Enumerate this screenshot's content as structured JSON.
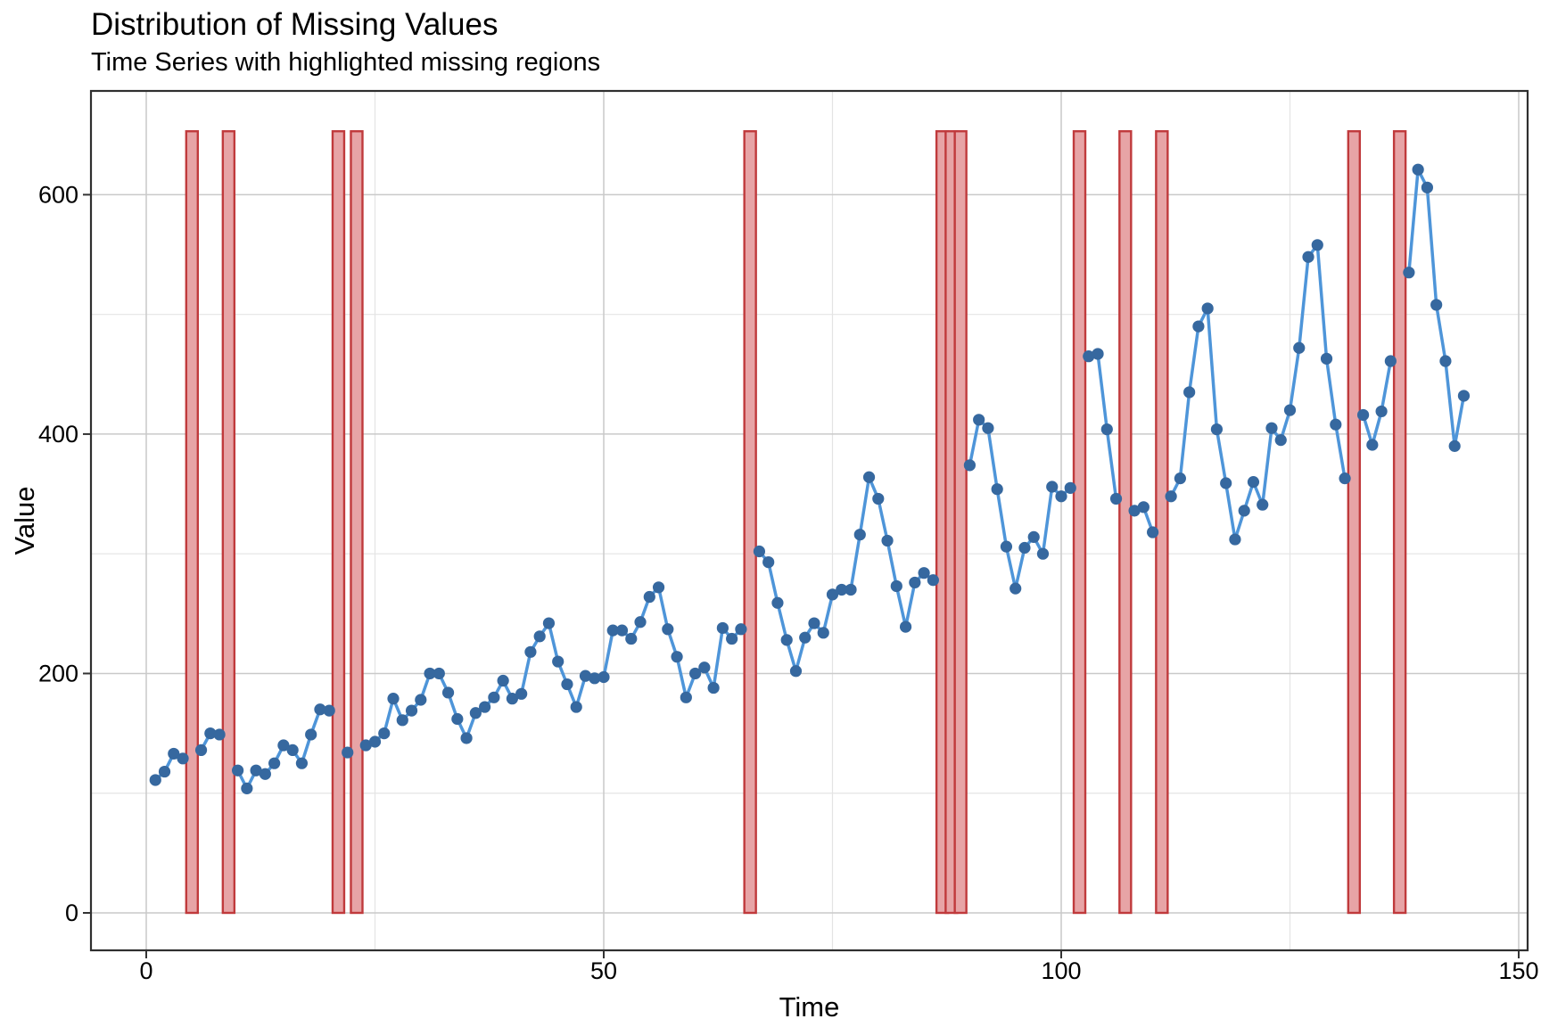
{
  "header": {
    "title": "Distribution of Missing Values",
    "subtitle": "Time Series with highlighted missing regions"
  },
  "chart_data": {
    "type": "line",
    "title": "Distribution of Missing Values",
    "subtitle": "Time Series with highlighted missing regions",
    "xlabel": "Time",
    "ylabel": "Value",
    "x_ticks": [
      0,
      50,
      100,
      150
    ],
    "x_tick_labels": [
      "0",
      "50",
      "100",
      "150"
    ],
    "x_minor_ticks": [
      25,
      75,
      125
    ],
    "y_ticks": [
      0,
      200,
      400,
      600
    ],
    "y_tick_labels": [
      "0",
      "200",
      "400",
      "600"
    ],
    "y_minor_ticks": [
      100,
      300,
      500
    ],
    "xlim": [
      -6,
      151
    ],
    "ylim": [
      -31,
      686
    ],
    "grid": true,
    "legend": false,
    "t_start": 1,
    "values": [
      111,
      118,
      133,
      129,
      null,
      136,
      150,
      149,
      null,
      119,
      104,
      119,
      116,
      125,
      140,
      136,
      125,
      149,
      170,
      169,
      null,
      134,
      null,
      140,
      143,
      150,
      179,
      161,
      169,
      178,
      200,
      200,
      184,
      162,
      146,
      167,
      172,
      180,
      194,
      179,
      183,
      218,
      231,
      242,
      210,
      191,
      172,
      198,
      196,
      197,
      236,
      236,
      229,
      243,
      264,
      272,
      237,
      214,
      180,
      200,
      205,
      188,
      238,
      229,
      237,
      null,
      302,
      293,
      259,
      228,
      202,
      230,
      242,
      234,
      266,
      270,
      270,
      316,
      364,
      346,
      311,
      273,
      239,
      276,
      284,
      278,
      null,
      null,
      null,
      374,
      412,
      405,
      354,
      306,
      271,
      305,
      314,
      300,
      356,
      348,
      355,
      null,
      465,
      467,
      404,
      346,
      null,
      336,
      339,
      318,
      null,
      348,
      363,
      435,
      490,
      505,
      404,
      359,
      312,
      336,
      360,
      341,
      405,
      395,
      420,
      472,
      548,
      558,
      463,
      408,
      363,
      null,
      416,
      391,
      419,
      461,
      null,
      535,
      621,
      606,
      508,
      461,
      390,
      432
    ],
    "missing_times": [
      5,
      9,
      21,
      23,
      66,
      87,
      88,
      89,
      102,
      107,
      111,
      132,
      137
    ],
    "missing_bar_top": 653,
    "colors": {
      "line": "#4e95d9",
      "point": "#36689f",
      "missing_fill": "#e7a4a6",
      "missing_stroke": "#c03a3c",
      "grid_major": "#c9c9c9",
      "grid_minor": "#e4e4e4",
      "panel_border": "#2f2f2f",
      "tick": "#333333",
      "text": "#000000"
    }
  }
}
